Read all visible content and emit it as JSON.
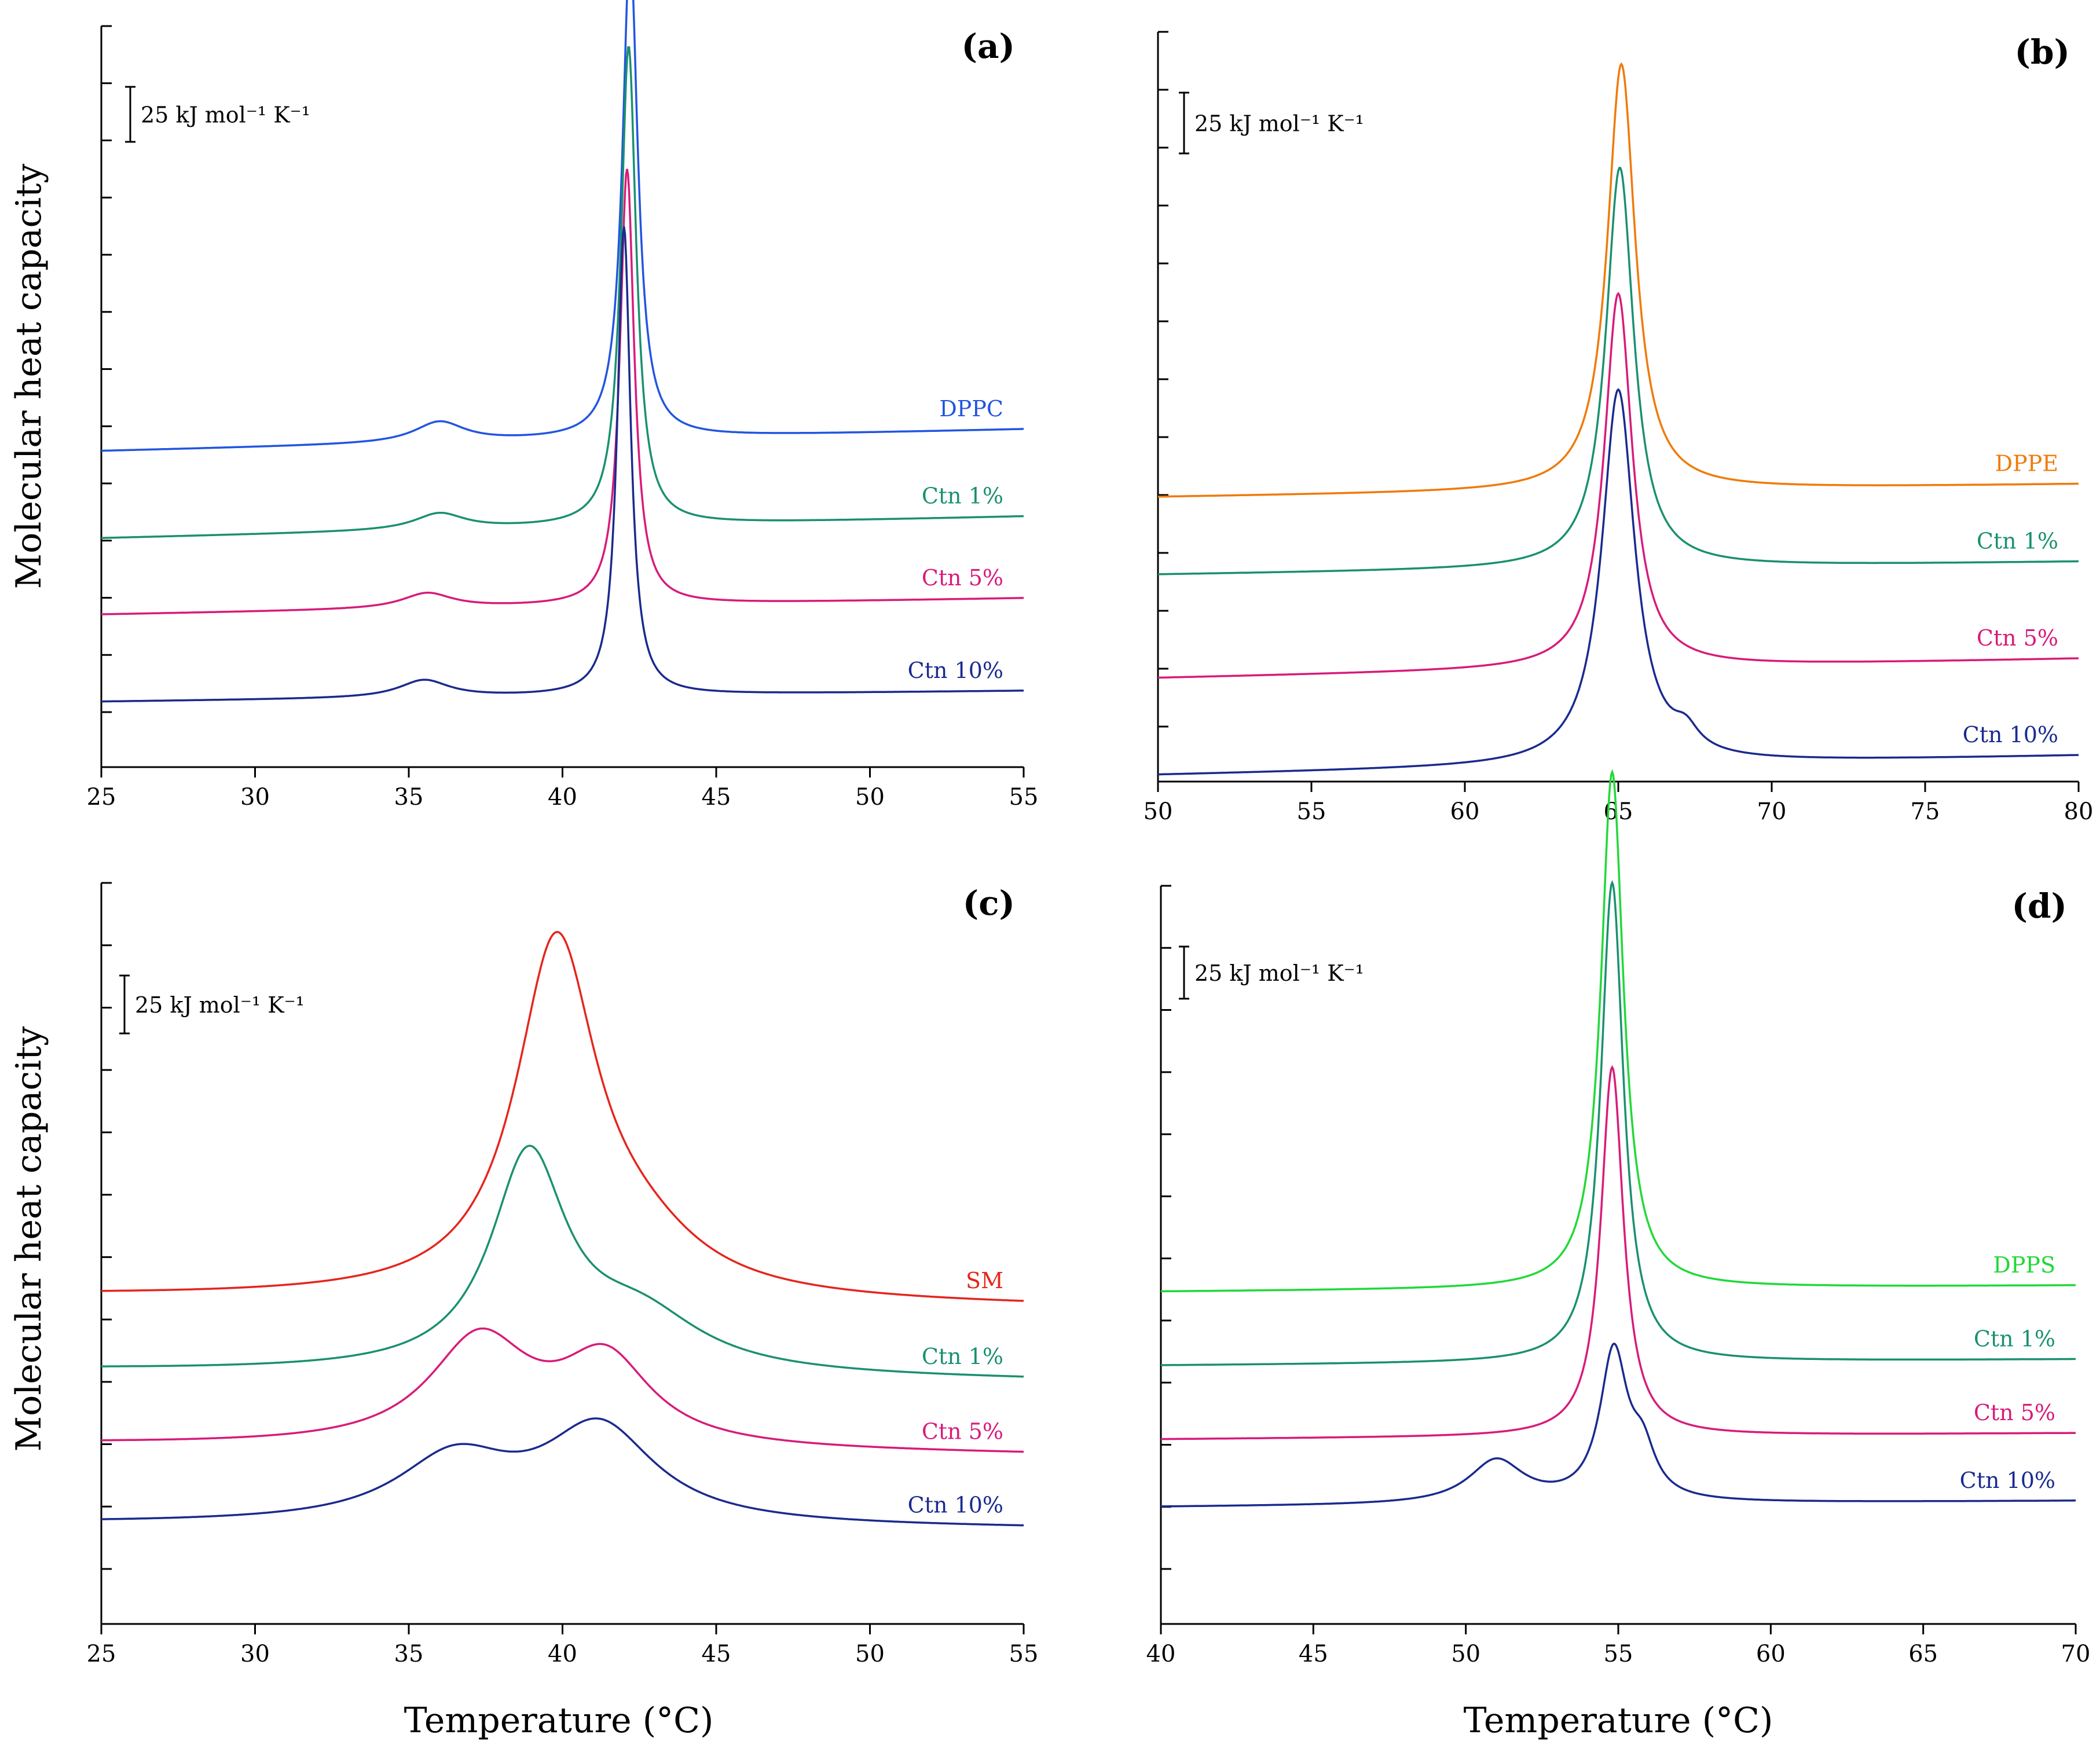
{
  "figure": {
    "ylabel_top": "Molecular heat capacity",
    "ylabel_bottom": "Molecular heat capacity",
    "xlabel_left": "Temperature (°C)",
    "xlabel_right": "Temperature (°C)"
  },
  "chart_data": [
    {
      "type": "line",
      "panel": "(a)",
      "scale_bar": "25 kJ mol⁻¹ K⁻¹",
      "xlim": [
        25,
        55
      ],
      "xticks": [
        "25",
        "30",
        "35",
        "40",
        "45",
        "50",
        "55"
      ],
      "series": [
        {
          "name": "DPPC",
          "color": "#2255e0",
          "baseline": [
            29,
            31
          ],
          "peaks": [
            {
              "x": 36.0,
              "h": 1.9,
              "w": 1.0
            },
            {
              "x": 42.2,
              "h": 45,
              "w": 0.3
            }
          ]
        },
        {
          "name": "Ctn 1%",
          "color": "#1a9070",
          "baseline": [
            21,
            23
          ],
          "peaks": [
            {
              "x": 36.0,
              "h": 1.5,
              "w": 1.0
            },
            {
              "x": 42.15,
              "h": 44,
              "w": 0.3
            }
          ]
        },
        {
          "name": "Ctn 5%",
          "color": "#d81b7a",
          "baseline": [
            14,
            15.5
          ],
          "peaks": [
            {
              "x": 35.6,
              "h": 1.4,
              "w": 1.0
            },
            {
              "x": 42.1,
              "h": 40,
              "w": 0.28
            }
          ]
        },
        {
          "name": "Ctn 10%",
          "color": "#1a2a8e",
          "baseline": [
            6,
            7
          ],
          "peaks": [
            {
              "x": 35.5,
              "h": 1.6,
              "w": 1.0
            },
            {
              "x": 42.0,
              "h": 43,
              "w": 0.26
            }
          ]
        }
      ]
    },
    {
      "type": "line",
      "panel": "(b)",
      "scale_bar": "25 kJ mol⁻¹ K⁻¹",
      "xlim": [
        50,
        80
      ],
      "xticks": [
        "50",
        "55",
        "60",
        "65",
        "70",
        "75",
        "80"
      ],
      "series": [
        {
          "name": "DPPE",
          "color": "#f07a0a",
          "baseline": [
            22,
            23
          ],
          "peaks": [
            {
              "x": 65.1,
              "h": 33,
              "w": 0.55
            }
          ]
        },
        {
          "name": "Ctn 1%",
          "color": "#1a9070",
          "baseline": [
            16,
            17
          ],
          "peaks": [
            {
              "x": 65.05,
              "h": 31,
              "w": 0.55
            }
          ]
        },
        {
          "name": "Ctn 5%",
          "color": "#d81b7a",
          "baseline": [
            8,
            9.5
          ],
          "peaks": [
            {
              "x": 65.0,
              "h": 29,
              "w": 0.55
            }
          ]
        },
        {
          "name": "Ctn 10%",
          "color": "#1a2a8e",
          "baseline": [
            0.5,
            2
          ],
          "peaks": [
            {
              "x": 65.0,
              "h": 29,
              "w": 0.65
            },
            {
              "x": 67.2,
              "h": 1.5,
              "w": 0.5
            }
          ]
        }
      ]
    },
    {
      "type": "line",
      "panel": "(c)",
      "scale_bar": "25 kJ mol⁻¹ K⁻¹",
      "xlim": [
        25,
        55
      ],
      "xticks": [
        "25",
        "30",
        "35",
        "40",
        "45",
        "50",
        "55"
      ],
      "series": [
        {
          "name": "SM",
          "color": "#e5251d",
          "baseline": [
            31,
            30
          ],
          "peaks": [
            {
              "x": 39.8,
              "h": 33,
              "w": 1.6
            },
            {
              "x": 42.5,
              "h": 4,
              "w": 2.5
            }
          ]
        },
        {
          "name": "Ctn 1%",
          "color": "#1a9070",
          "baseline": [
            24,
            23
          ],
          "peaks": [
            {
              "x": 38.9,
              "h": 20,
              "w": 1.5
            },
            {
              "x": 42.5,
              "h": 5,
              "w": 2.5
            }
          ]
        },
        {
          "name": "Ctn 5%",
          "color": "#d81b7a",
          "baseline": [
            17,
            16
          ],
          "peaks": [
            {
              "x": 37.3,
              "h": 10,
              "w": 2.0
            },
            {
              "x": 41.4,
              "h": 8,
              "w": 1.8
            }
          ]
        },
        {
          "name": "Ctn 10%",
          "color": "#1a2a8e",
          "baseline": [
            9.5,
            9
          ],
          "peaks": [
            {
              "x": 36.5,
              "h": 6,
              "w": 2.3
            },
            {
              "x": 41.2,
              "h": 9,
              "w": 2.2
            }
          ]
        }
      ]
    },
    {
      "type": "line",
      "panel": "(d)",
      "scale_bar": "25 kJ mol⁻¹ K⁻¹",
      "xlim": [
        40,
        70
      ],
      "xticks": [
        "40",
        "45",
        "50",
        "55",
        "60",
        "65",
        "70"
      ],
      "series": [
        {
          "name": "DPPS",
          "color": "#22d838",
          "baseline": [
            27,
            27.5
          ],
          "peaks": [
            {
              "x": 54.8,
              "h": 42,
              "w": 0.45
            }
          ]
        },
        {
          "name": "Ctn 1%",
          "color": "#1a9070",
          "baseline": [
            21,
            21.5
          ],
          "peaks": [
            {
              "x": 54.8,
              "h": 39,
              "w": 0.45
            }
          ]
        },
        {
          "name": "Ctn 5%",
          "color": "#d81b7a",
          "baseline": [
            15,
            15.5
          ],
          "peaks": [
            {
              "x": 54.8,
              "h": 30,
              "w": 0.45
            }
          ]
        },
        {
          "name": "Ctn 10%",
          "color": "#1a2a8e",
          "baseline": [
            9.5,
            10
          ],
          "peaks": [
            {
              "x": 51.0,
              "h": 3.5,
              "w": 1.1
            },
            {
              "x": 54.85,
              "h": 12,
              "w": 0.55
            },
            {
              "x": 55.8,
              "h": 3.5,
              "w": 0.5
            }
          ]
        }
      ]
    }
  ]
}
